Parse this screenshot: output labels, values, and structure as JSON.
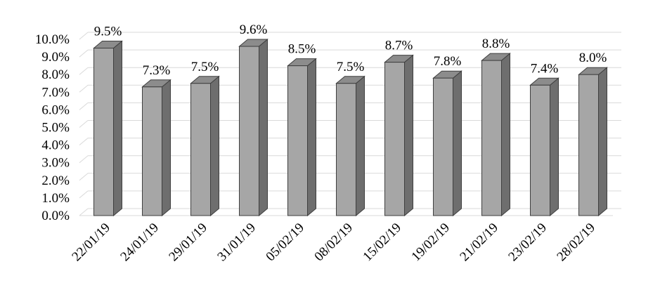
{
  "chart_data": {
    "type": "bar",
    "style": "3d-column",
    "categories": [
      "22/01/19",
      "24/01/19",
      "29/01/19",
      "31/01/19",
      "05/02/19",
      "08/02/19",
      "15/02/19",
      "19/02/19",
      "21/02/19",
      "23/02/19",
      "28/02/19"
    ],
    "values": [
      9.5,
      7.3,
      7.5,
      9.6,
      8.5,
      7.5,
      8.7,
      7.8,
      8.8,
      7.4,
      8.0
    ],
    "data_labels": [
      "9.5%",
      "7.3%",
      "7.5%",
      "9.6%",
      "8.5%",
      "7.5%",
      "8.7%",
      "7.8%",
      "8.8%",
      "7.4%",
      "8.0%"
    ],
    "y_ticks": [
      "0.0%",
      "1.0%",
      "2.0%",
      "3.0%",
      "4.0%",
      "5.0%",
      "6.0%",
      "7.0%",
      "8.0%",
      "9.0%",
      "10.0%"
    ],
    "ylim": [
      0,
      10
    ],
    "ytick_step": 1,
    "grid": true,
    "legend": "none",
    "title": "",
    "xlabel": "",
    "ylabel": "",
    "colors": {
      "bar_front": "#a6a6a6",
      "bar_side": "#6e6e6e",
      "bar_top": "#8c8c8c",
      "bar_edge": "#3f3f3f",
      "grid": "#d9d9d9"
    }
  }
}
